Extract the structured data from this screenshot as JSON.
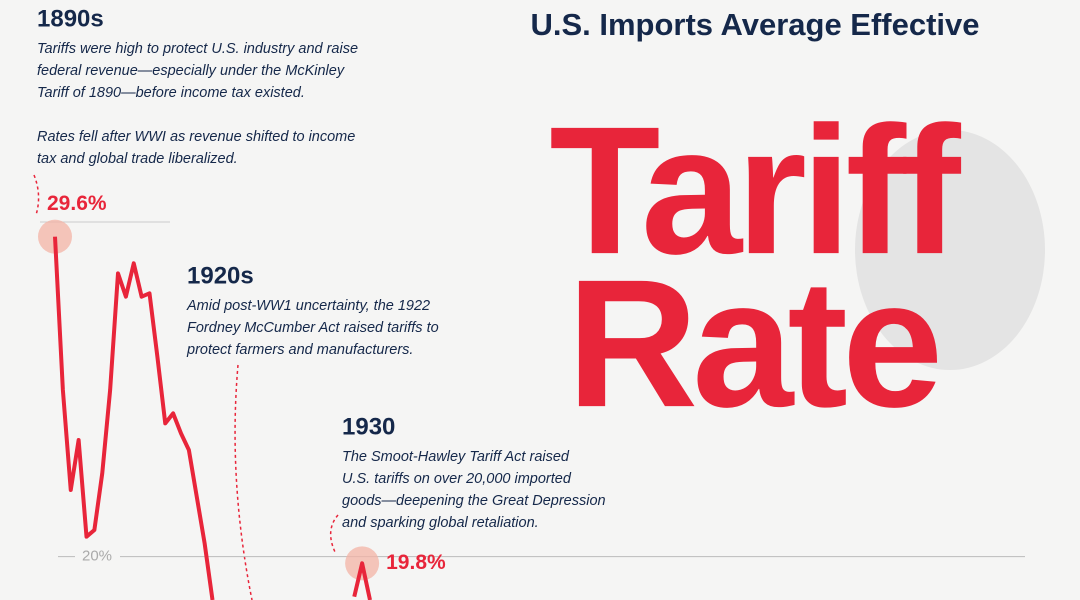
{
  "chart_data": {
    "type": "line",
    "title": "U.S. Imports Average Effective",
    "headline": [
      "Tariff",
      "Rate"
    ],
    "categories": [
      null,
      null,
      null,
      null,
      null,
      null,
      null,
      null,
      null,
      null,
      null,
      null,
      null,
      null,
      null,
      null,
      null,
      null,
      null,
      null,
      null,
      null,
      null,
      null,
      null,
      null,
      null,
      null,
      null,
      null,
      null,
      null,
      null,
      null,
      null,
      null,
      null,
      null,
      null,
      null,
      null
    ],
    "series": [
      {
        "name": null,
        "color": "#e8253a",
        "values": [
          29.6,
          25,
          22,
          23.5,
          20.6,
          20.8,
          22.5,
          25,
          28.5,
          27.8,
          28.8,
          27.8,
          27.9,
          26,
          24,
          24.3,
          23.7,
          23.2,
          21.8,
          20.4,
          18.7,
          null,
          null,
          null,
          null,
          null,
          null,
          null,
          null,
          null,
          null,
          null,
          null,
          null,
          null,
          null,
          null,
          null,
          18.8,
          19.8,
          18.7
        ]
      }
    ],
    "highlights": [
      {
        "index": 0,
        "value": 29.6,
        "value_label": "29.6%"
      },
      {
        "index": 39,
        "value": 19.8,
        "value_label": "19.8%"
      }
    ],
    "ylim": [
      18.7,
      36.7
    ],
    "yticks": [
      {
        "value": 20,
        "label": "20%"
      }
    ],
    "grid": true,
    "annotations": [
      {
        "heading": "1890s",
        "paragraphs": [
          [
            "Tariffs were high to protect U.S. industry and raise",
            "federal revenue—especially under the McKinley",
            "Tariff of 1890—before income tax existed."
          ],
          [
            "Rates fell after WWI as revenue shifted to income",
            "tax and global trade liberalized."
          ]
        ]
      },
      {
        "heading": "1920s",
        "paragraphs": [
          [
            "Amid post-WW1 uncertainty, the 1922",
            "Fordney McCumber Act raised tariffs to",
            "protect farmers and manufacturers."
          ]
        ]
      },
      {
        "heading": "1930",
        "paragraphs": [
          [
            "The Smoot-Hawley Tariff Act raised",
            "U.S. tariffs on over 20,000 imported",
            "goods—deepening the Great Depression",
            "and sparking global retaliation."
          ]
        ]
      }
    ]
  }
}
